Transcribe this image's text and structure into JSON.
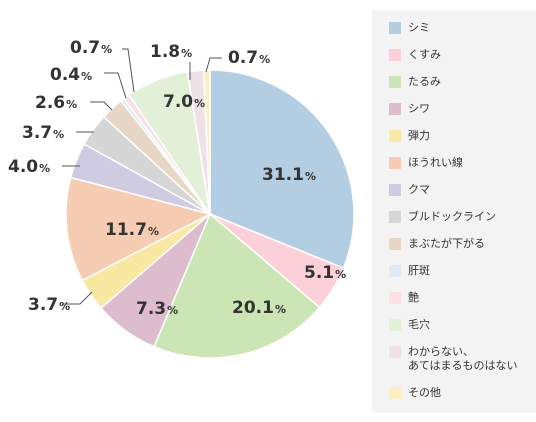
{
  "chart_data": {
    "type": "pie",
    "percent_sign": "%",
    "slices": [
      {
        "label": "シミ",
        "value": 31.1,
        "display": "31.1",
        "color": "#b3cde3"
      },
      {
        "label": "くすみ",
        "value": 5.1,
        "display": "5.1",
        "color": "#fbd0d8"
      },
      {
        "label": "たるみ",
        "value": 20.1,
        "display": "20.1",
        "color": "#cce5b4"
      },
      {
        "label": "シワ",
        "value": 7.3,
        "display": "7.3",
        "color": "#dcbccd"
      },
      {
        "label": "弾力",
        "value": 3.7,
        "display": "3.7",
        "color": "#f8e8a2"
      },
      {
        "label": "ほうれい線",
        "value": 11.7,
        "display": "11.7",
        "color": "#f6cdb3"
      },
      {
        "label": "クマ",
        "value": 4.0,
        "display": "4.0",
        "color": "#cfcce2"
      },
      {
        "label": "ブルドックライン",
        "value": 3.7,
        "display": "3.7",
        "color": "#d6d6d6"
      },
      {
        "label": "まぶたが下がる",
        "value": 2.6,
        "display": "2.6",
        "color": "#e8d6c6"
      },
      {
        "label": "肝斑",
        "value": 0.4,
        "display": "0.4",
        "color": "#dcebf4"
      },
      {
        "label": "艶",
        "value": 0.7,
        "display": "0.7",
        "color": "#fbe1e6"
      },
      {
        "label": "毛穴",
        "value": 7.0,
        "display": "7.0",
        "color": "#e2f0d7"
      },
      {
        "label": "わからない、\nあてはまるものはない",
        "value": 1.8,
        "display": "1.8",
        "color": "#f0e0e8"
      },
      {
        "label": "その他",
        "value": 0.7,
        "display": "0.7",
        "color": "#fbf0c0"
      }
    ]
  }
}
